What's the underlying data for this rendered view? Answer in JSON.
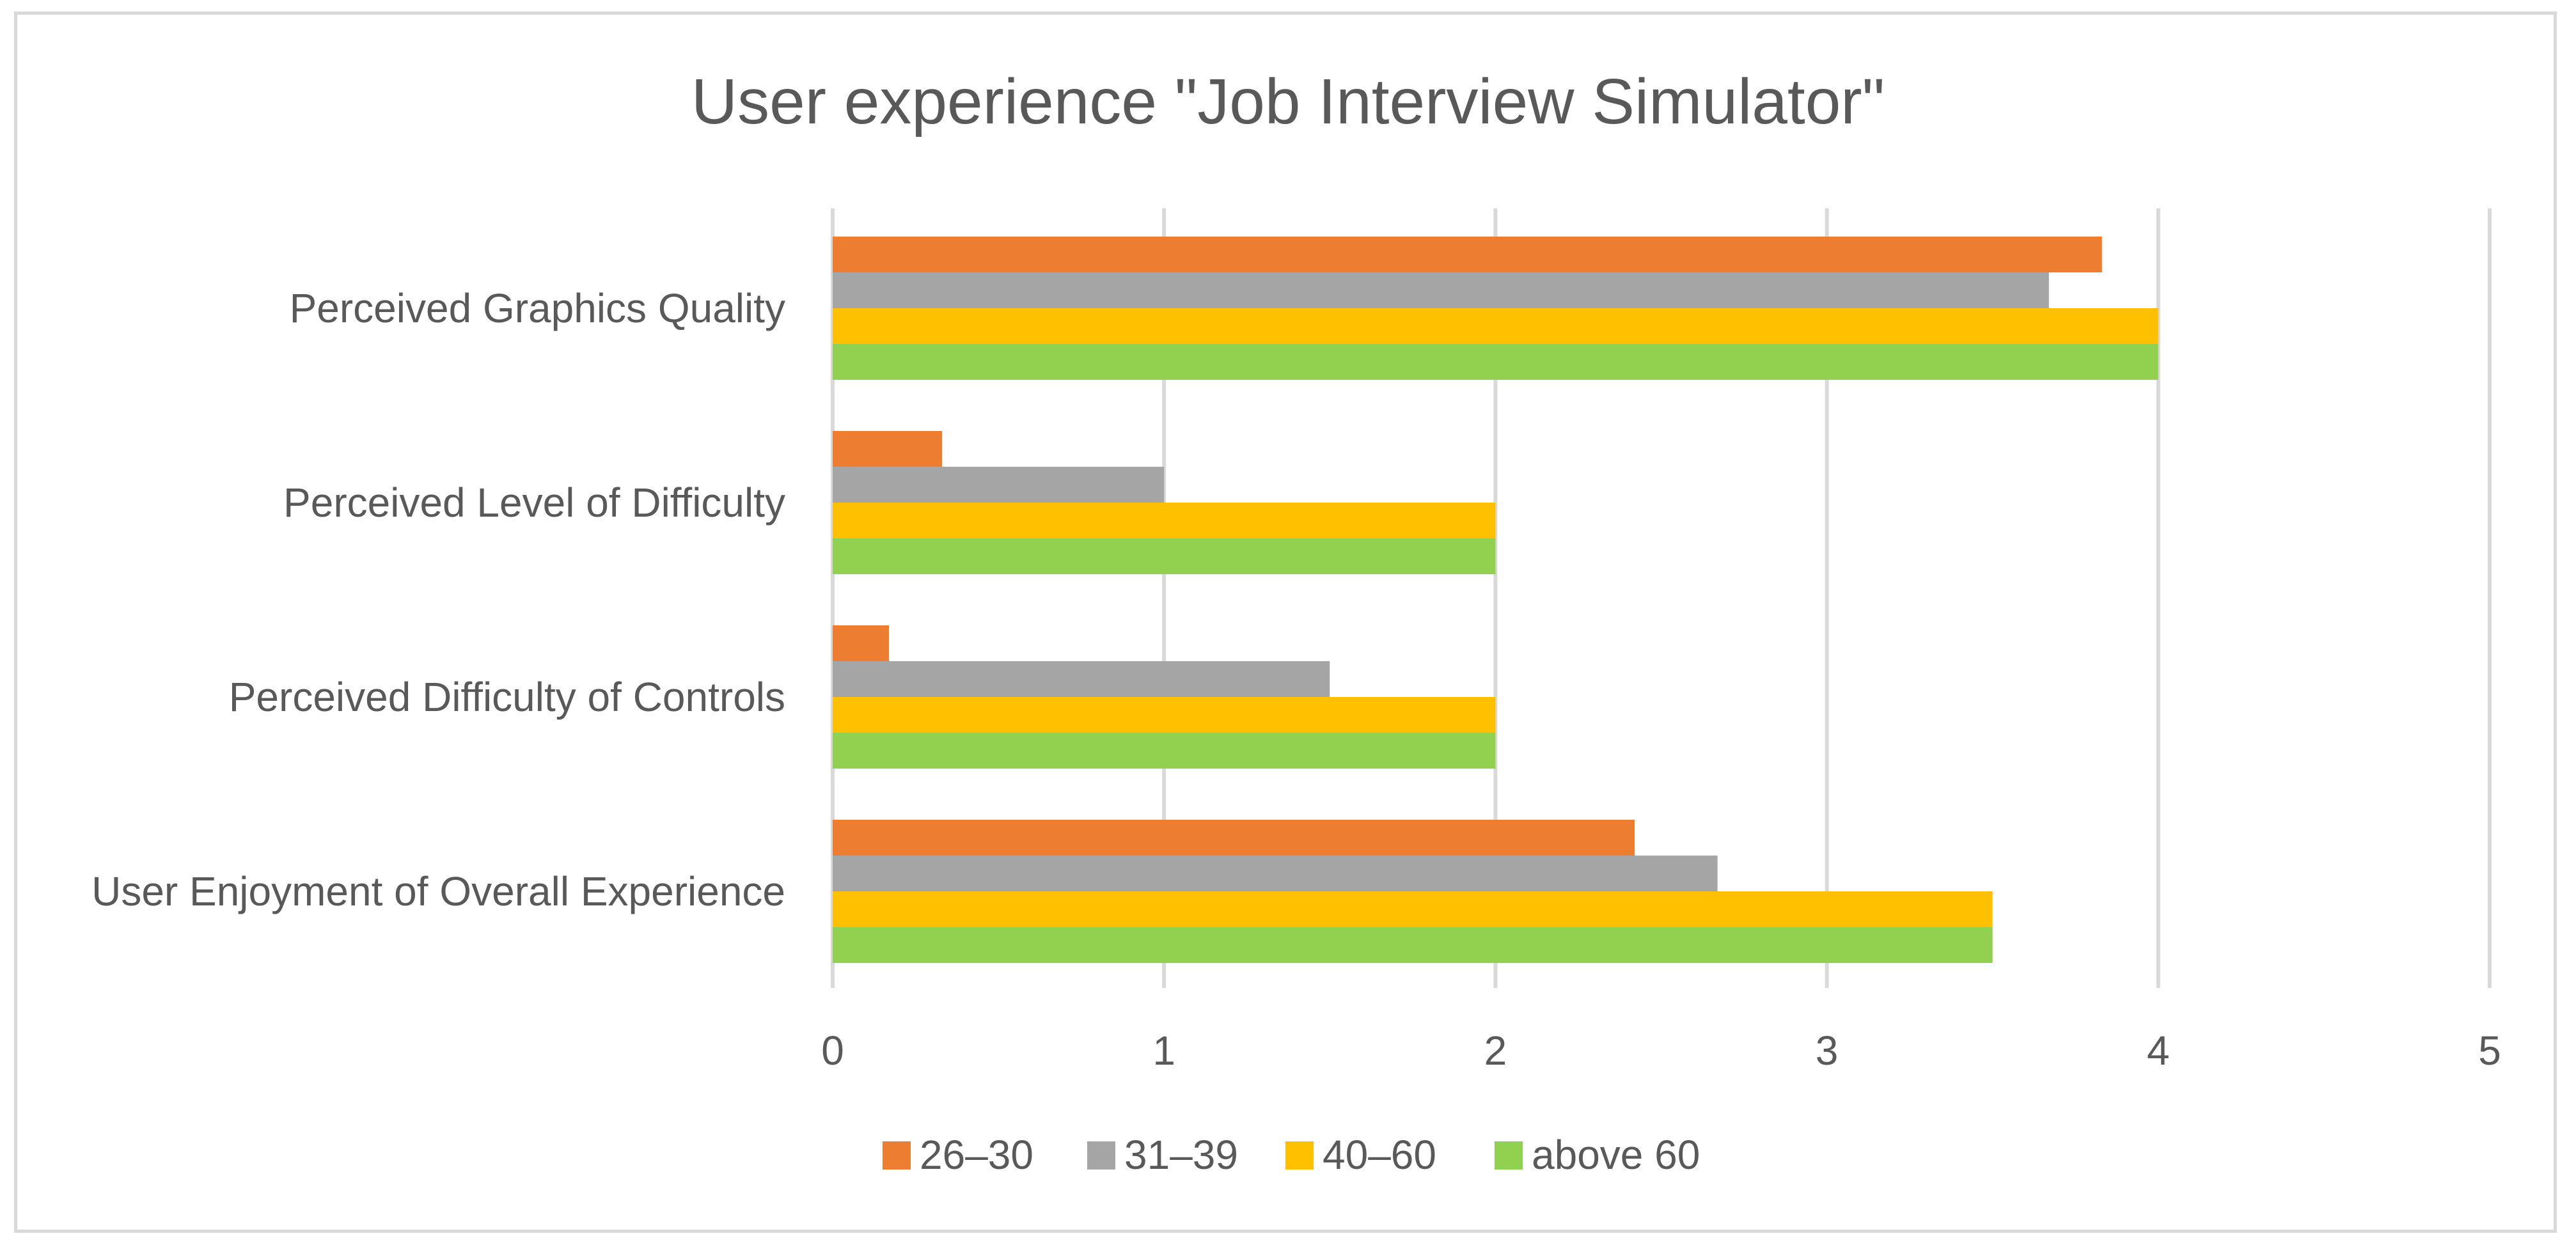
{
  "chart_data": {
    "type": "bar",
    "orientation": "horizontal",
    "title": "User experience \"Job Interview Simulator\"",
    "xlabel": "",
    "ylabel": "",
    "xlim": [
      0,
      5
    ],
    "ticks": [
      "0",
      "1",
      "2",
      "3",
      "4",
      "5"
    ],
    "grid": true,
    "legend_position": "bottom",
    "categories": [
      "Perceived Graphics Quality",
      "Perceived Level of Difficulty",
      "Perceived Difficulty of Controls",
      "User Enjoyment of Overall Experience"
    ],
    "series": [
      {
        "name": "26–30",
        "color": "#ed7d31",
        "values": [
          3.83,
          0.33,
          0.17,
          2.42
        ]
      },
      {
        "name": "31–39",
        "color": "#a5a5a5",
        "values": [
          3.67,
          1.0,
          1.5,
          2.67
        ]
      },
      {
        "name": "40–60",
        "color": "#ffc000",
        "values": [
          4.0,
          2.0,
          2.0,
          3.5
        ]
      },
      {
        "name": "above 60",
        "color": "#92d050",
        "values": [
          4.0,
          2.0,
          2.0,
          3.5
        ]
      }
    ]
  }
}
